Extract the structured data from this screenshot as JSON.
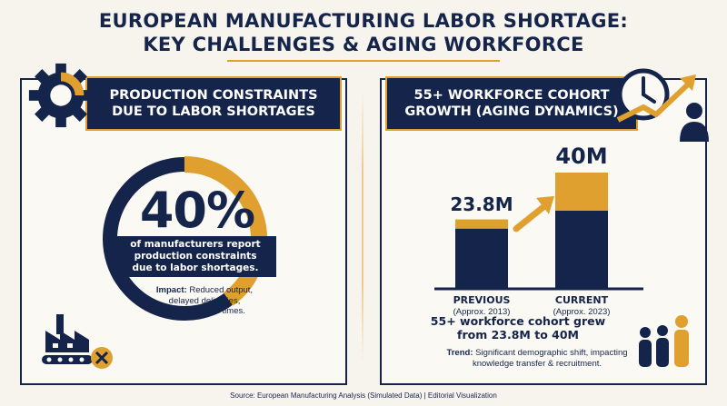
{
  "title": {
    "line1": "EUROPEAN MANUFACTURING LABOR SHORTAGE:",
    "line2": "KEY CHALLENGES & AGING WORKFORCE"
  },
  "left_panel": {
    "header_line1": "PRODUCTION CONSTRAINTS",
    "header_line2": "DUE TO LABOR SHORTAGES",
    "percent_label": "40%",
    "stat_line1": "of manufacturers report",
    "stat_line2": "production constraints",
    "stat_line3": "due to labor shortages.",
    "impact_label": "Impact:",
    "impact_line1": "Reduced output,",
    "impact_line2": "delayed deliveries,",
    "impact_line3": "increased lead times."
  },
  "right_panel": {
    "header_line1": "55+ WORKFORCE COHORT",
    "header_line2": "GROWTH (AGING DYNAMICS)",
    "growth_line1": "55+ workforce cohort grew",
    "growth_line2": "from 23.8M to 40M",
    "trend_label": "Trend:",
    "trend_line1": "Significant demographic shift, impacting",
    "trend_line2": "knowledge transfer & recruitment."
  },
  "source": "Source: European Manufacturing Analysis (Simulated Data) | Editorial Visualization",
  "colors": {
    "navy": "#14244a",
    "gold": "#e0a030",
    "background": "#f7f4ee"
  },
  "icons": [
    "gear-icon",
    "factory-icon",
    "clock-icon",
    "growth-arrow-icon",
    "person-icon",
    "people-icon"
  ],
  "chart_data": [
    {
      "type": "pie",
      "values": [
        40,
        60
      ],
      "labels": [
        "40%",
        ""
      ],
      "colors": [
        "#e0a030",
        "#14244a"
      ]
    },
    {
      "type": "bar",
      "categories": [
        "PREVIOUS",
        "CURRENT"
      ],
      "sublabels": [
        "(Approx. 2013)",
        "(Approx. 2023)"
      ],
      "values": [
        23.8,
        40
      ],
      "value_labels": [
        "23.8M",
        "40M"
      ],
      "ylim": [
        0,
        40
      ]
    }
  ]
}
